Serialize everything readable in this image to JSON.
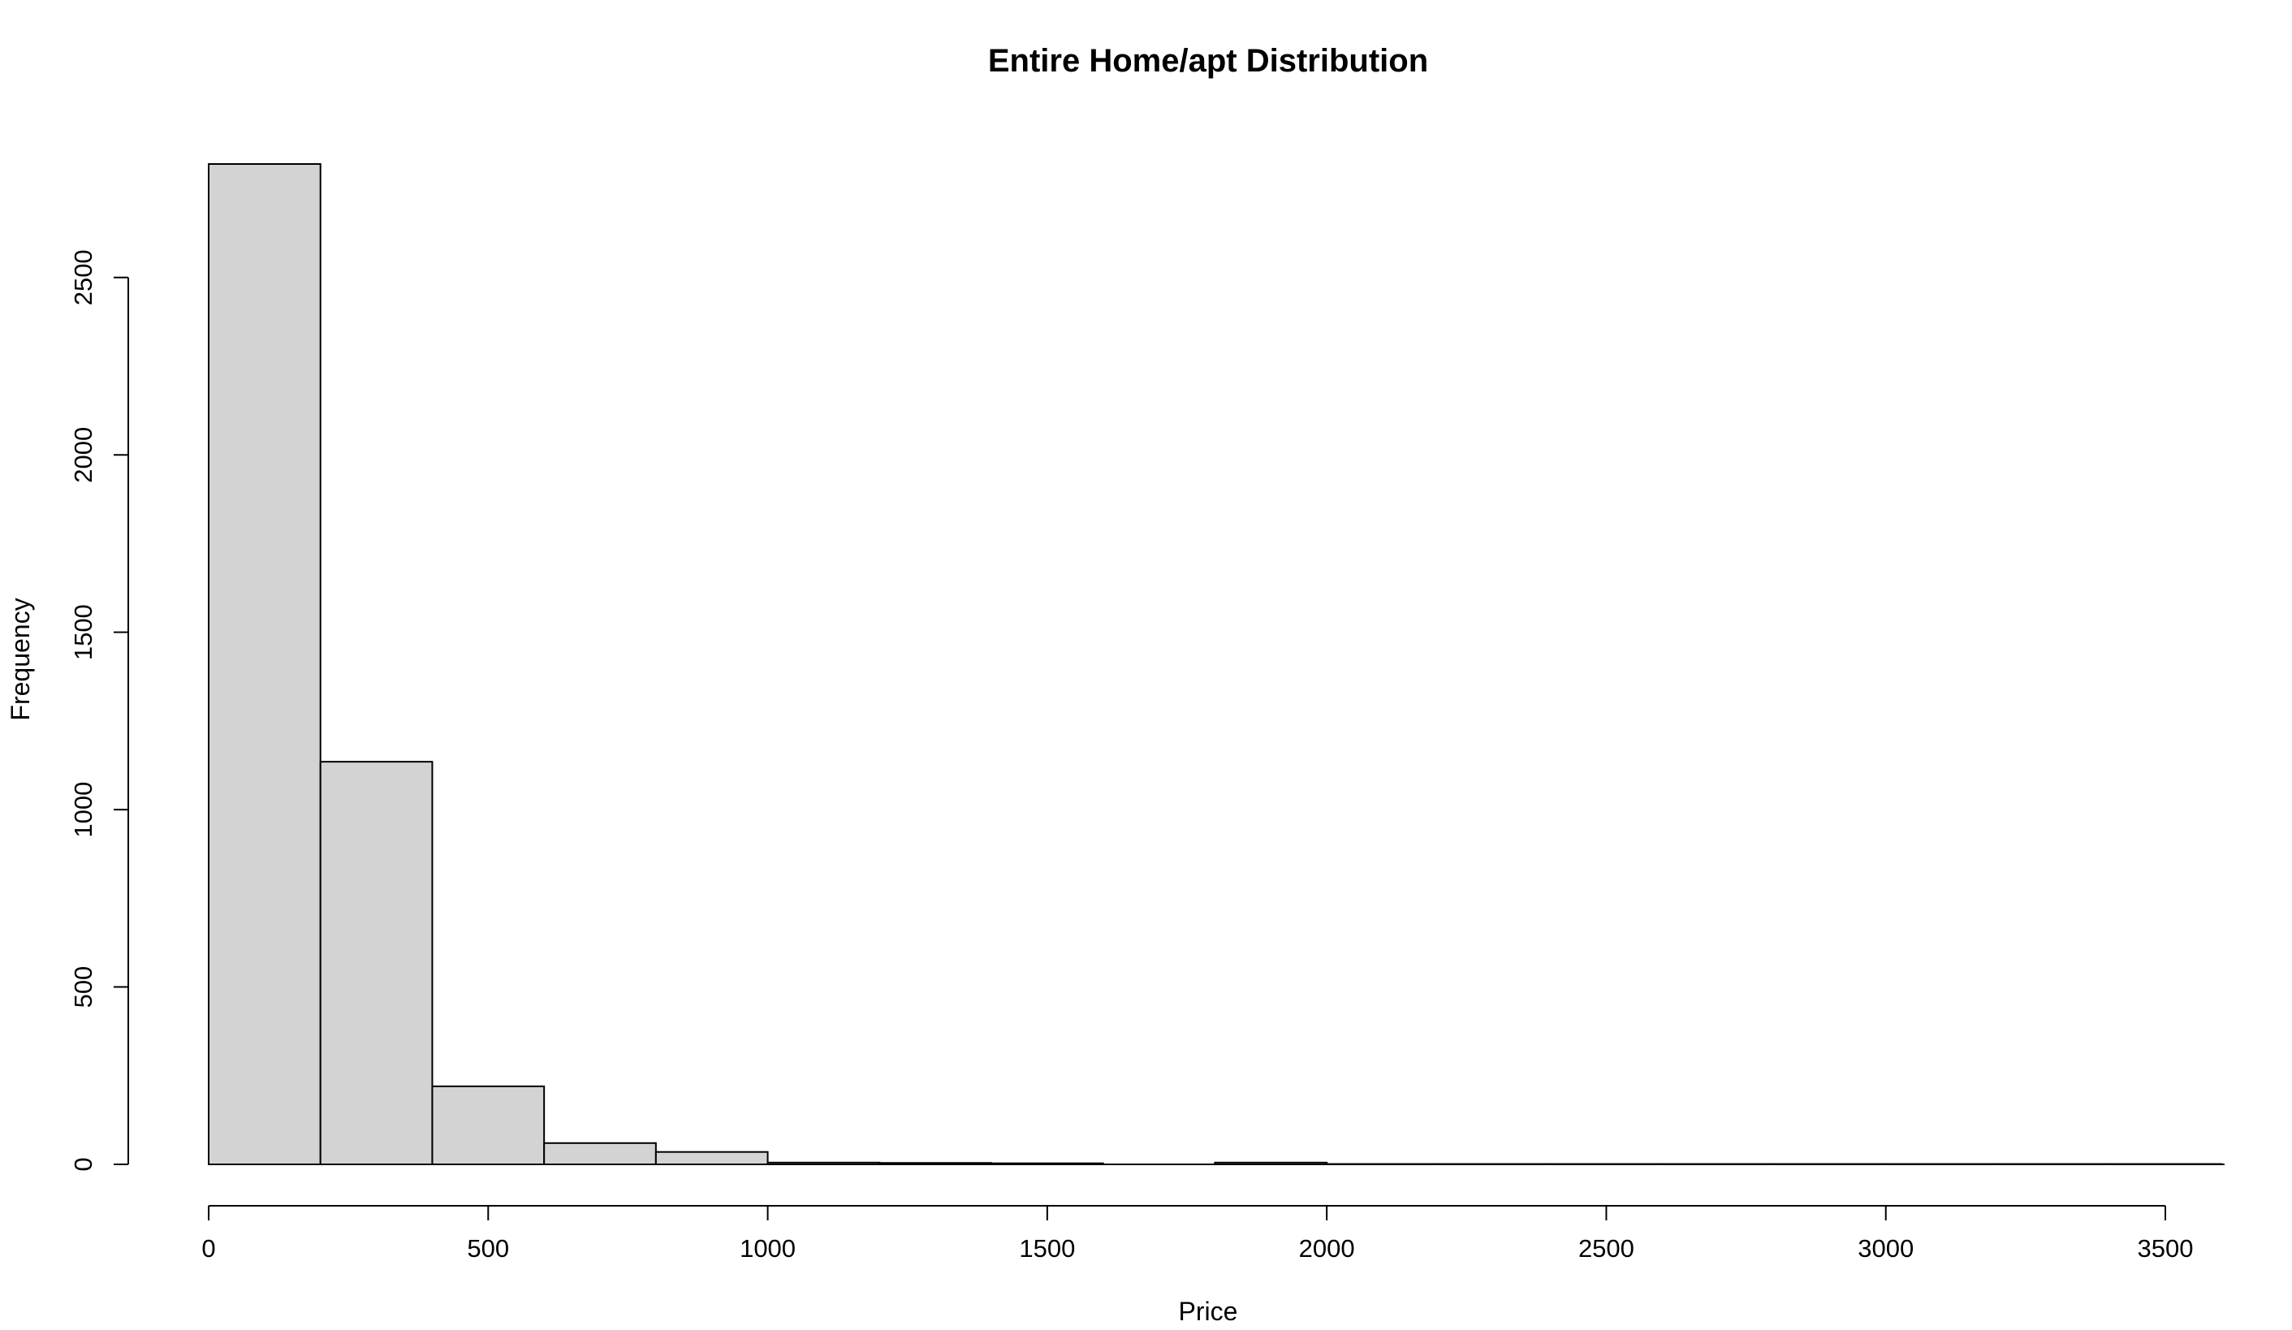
{
  "chart_data": {
    "type": "bar",
    "title": "Entire Home/apt Distribution",
    "xlabel": "Price",
    "ylabel": "Frequency",
    "bin_edges": [
      0,
      200,
      400,
      600,
      800,
      1000,
      1200,
      1400,
      1600,
      1800,
      2000,
      2200,
      2400,
      2600,
      2800,
      3000,
      3200,
      3400,
      3600
    ],
    "values": [
      2820,
      1135,
      220,
      60,
      35,
      5,
      4,
      3,
      0,
      5,
      1,
      1,
      1,
      1,
      1,
      1,
      1,
      1
    ],
    "xlim": [
      0,
      3600
    ],
    "ylim": [
      0,
      2820
    ],
    "x_ticks": [
      0,
      500,
      1000,
      1500,
      2000,
      2500,
      3000,
      3500
    ],
    "y_ticks": [
      0,
      500,
      1000,
      1500,
      2000,
      2500
    ],
    "colors": {
      "bar_fill": "#d3d3d3",
      "bar_stroke": "#000000"
    },
    "grid": false,
    "legend": "none"
  }
}
